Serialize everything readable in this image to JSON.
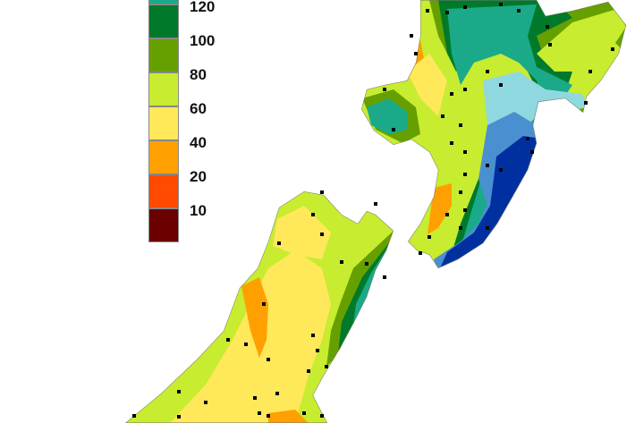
{
  "legend": {
    "items": [
      {
        "label": "120",
        "color": "#1aaa8a"
      },
      {
        "label": "100",
        "color": "#007a2a"
      },
      {
        "label": "80",
        "color": "#66a000"
      },
      {
        "label": "60",
        "color": "#c8ec30"
      },
      {
        "label": "40",
        "color": "#ffe85a"
      },
      {
        "label": "20",
        "color": "#ffa000"
      },
      {
        "label": "10",
        "color": "#ff4a00"
      },
      {
        "label": "",
        "color": "#6a0000"
      }
    ]
  },
  "map_colors": {
    "light_cyan": "#90d8e0",
    "mid_blue": "#4a90d0",
    "dark_blue": "#0030a0"
  }
}
